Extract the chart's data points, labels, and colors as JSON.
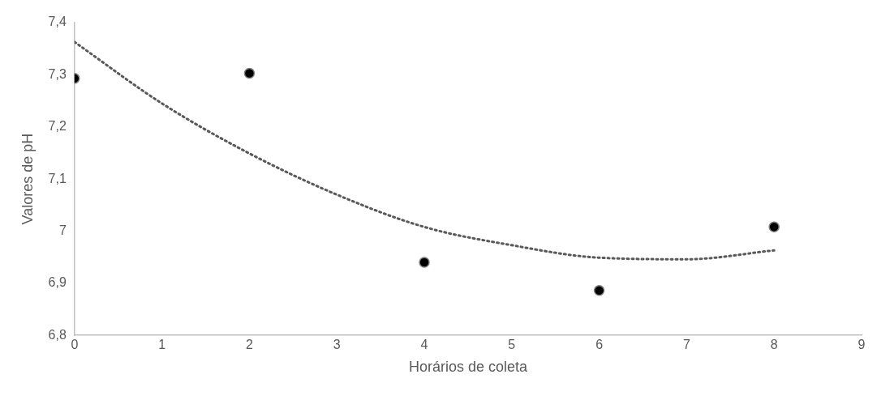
{
  "chart_data": {
    "type": "scatter",
    "xlabel": "Horários de coleta",
    "ylabel": "Valores de pH",
    "xlim": [
      0,
      9
    ],
    "xticks": [
      0,
      1,
      2,
      3,
      4,
      5,
      6,
      7,
      8,
      9
    ],
    "ylim": [
      6.8,
      7.4
    ],
    "yticks": [
      {
        "value": 6.8,
        "label": "6,8"
      },
      {
        "value": 6.9,
        "label": "6,9"
      },
      {
        "value": 7,
        "label": "7"
      },
      {
        "value": 7.1,
        "label": "7,1"
      },
      {
        "value": 7.2,
        "label": "7,2"
      },
      {
        "value": 7.3,
        "label": "7,3"
      },
      {
        "value": 7.4,
        "label": "7,4"
      }
    ],
    "grid": false,
    "legend": false,
    "marker": "circle",
    "series": [
      {
        "color": "#000000",
        "x": [
          0,
          2,
          4,
          6,
          8
        ],
        "values": [
          7.293,
          7.303,
          6.94,
          6.886,
          7.008
        ]
      },
      {
        "type": "line",
        "color": "#595959",
        "line_style": "dotted",
        "marker": "none",
        "x": [
          0,
          1,
          2,
          3,
          4,
          5,
          6,
          7,
          8
        ],
        "values": [
          7.363,
          7.245,
          7.149,
          7.07,
          7.008,
          6.973,
          6.949,
          6.946,
          6.963
        ]
      }
    ]
  }
}
